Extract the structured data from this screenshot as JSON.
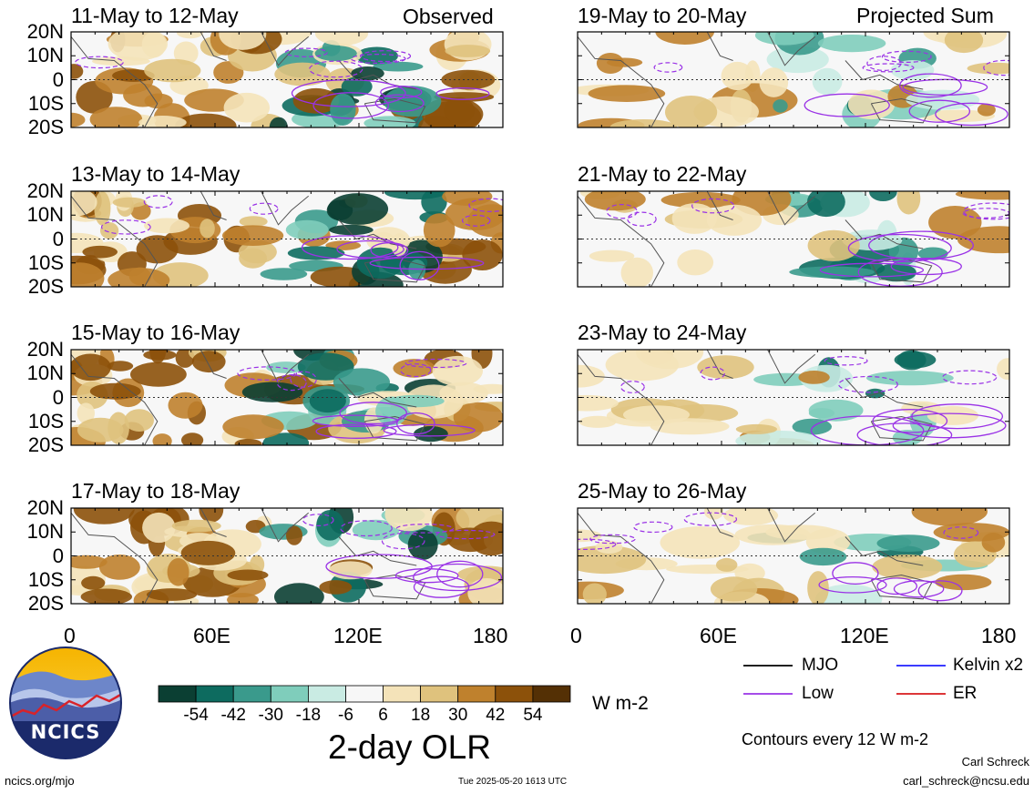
{
  "chart_data": {
    "type": "heatmap",
    "variable_title": "2-day OLR",
    "units": "W m-2",
    "colorbar": {
      "tick_labels": [
        "-54",
        "-42",
        "-30",
        "-18",
        "-6",
        "6",
        "18",
        "30",
        "42",
        "54"
      ],
      "colors": [
        "#0b3f33",
        "#0d6b5f",
        "#3a9a8c",
        "#7fcdbb",
        "#c9ebe3",
        "#f7f7f7",
        "#f4e3b9",
        "#dfc27d",
        "#bf812d",
        "#8c510a",
        "#543005"
      ]
    },
    "columns": [
      {
        "header": "Observed"
      },
      {
        "header": "Projected Sum"
      }
    ],
    "panels": [
      {
        "title": "11-May to 12-May",
        "column": 0,
        "row": 0
      },
      {
        "title": "13-May to 14-May",
        "column": 0,
        "row": 1
      },
      {
        "title": "15-May to 16-May",
        "column": 0,
        "row": 2
      },
      {
        "title": "17-May to 18-May",
        "column": 0,
        "row": 3
      },
      {
        "title": "19-May to 20-May",
        "column": 1,
        "row": 0
      },
      {
        "title": "21-May to 22-May",
        "column": 1,
        "row": 1
      },
      {
        "title": "23-May to 24-May",
        "column": 1,
        "row": 2
      },
      {
        "title": "25-May to 26-May",
        "column": 1,
        "row": 3
      }
    ],
    "y_tick_labels": [
      "20N",
      "10N",
      "0",
      "10S",
      "20S"
    ],
    "x_tick_labels": [
      "0",
      "60E",
      "120E",
      "180"
    ],
    "xlim": [
      0,
      180
    ],
    "ylim": [
      -20,
      20
    ],
    "legend": [
      {
        "label": "MJO",
        "color": "#000000",
        "style": "solid"
      },
      {
        "label": "Kelvin x2",
        "color": "#1f1fff",
        "style": "solid"
      },
      {
        "label": "Low",
        "color": "#9a32e6",
        "style": "solid"
      },
      {
        "label": "ER",
        "color": "#d7191c",
        "style": "solid"
      }
    ],
    "contour_note": "Contours every 12 W m-2"
  },
  "logo": {
    "text": "NCICS"
  },
  "footer": {
    "url": "ncics.org/mjo",
    "timestamp": "Tue 2025-05-20 1613 UTC",
    "author": "Carl Schreck",
    "email": "carl_schreck@ncsu.edu"
  }
}
